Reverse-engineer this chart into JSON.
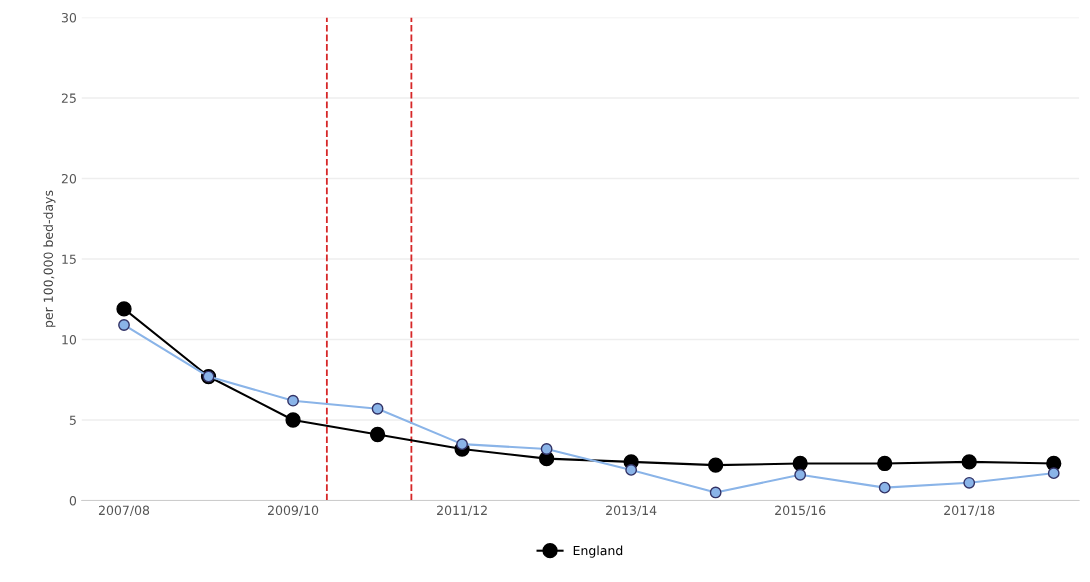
{
  "chart_data": {
    "type": "line",
    "ylabel": "per 100,000 bed-days",
    "categories": [
      "2007/08",
      null,
      "2009/10",
      null,
      "2011/12",
      null,
      "2013/14",
      null,
      "2015/16",
      null,
      "2017/18",
      null
    ],
    "series": [
      {
        "values": [
          10.9,
          7.7,
          6.2,
          5.7,
          3.5,
          3.2,
          1.9,
          0.5,
          1.6,
          0.8,
          1.1,
          1.7
        ],
        "color": "#8ab4e8"
      },
      {
        "name": "England",
        "values": [
          11.9,
          7.7,
          5.0,
          4.1,
          3.2,
          2.6,
          2.4,
          2.2,
          2.3,
          2.3,
          2.4,
          2.3
        ],
        "color": "#000000"
      }
    ],
    "ylim": [
      0,
      30
    ],
    "yticks": [
      0,
      5,
      10,
      15,
      20,
      25,
      30
    ],
    "grid": "y",
    "legend": "bottom",
    "marker": "circle",
    "line_style": "solid"
  }
}
